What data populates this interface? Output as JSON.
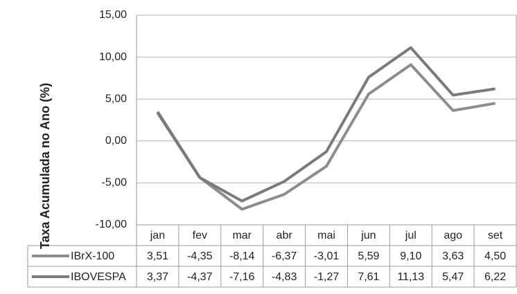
{
  "chart_data": {
    "type": "line",
    "y_label": "Taxa Acumulada no Ano (%)",
    "categories": [
      "jan",
      "fev",
      "mar",
      "abr",
      "mai",
      "jun",
      "jul",
      "ago",
      "set"
    ],
    "series": [
      {
        "name": "IBrX-100",
        "color": "#8c8c8c",
        "values": [
          3.51,
          -4.35,
          -8.14,
          -6.37,
          -3.01,
          5.59,
          9.1,
          3.63,
          4.5
        ],
        "value_labels": [
          "3,51",
          "-4,35",
          "-8,14",
          "-6,37",
          "-3,01",
          "5,59",
          "9,10",
          "3,63",
          "4,50"
        ]
      },
      {
        "name": "IBOVESPA",
        "color": "#7a7a7a",
        "values": [
          3.37,
          -4.37,
          -7.16,
          -4.83,
          -1.27,
          7.61,
          11.13,
          5.47,
          6.22
        ],
        "value_labels": [
          "3,37",
          "-4,37",
          "-7,16",
          "-4,83",
          "-1,27",
          "7,61",
          "11,13",
          "5,47",
          "6,22"
        ]
      }
    ],
    "ylim": [
      -10,
      15
    ],
    "yticks": [
      {
        "value": -10,
        "label": "-10,00"
      },
      {
        "value": -5,
        "label": "-5,00"
      },
      {
        "value": 0,
        "label": "0,00"
      },
      {
        "value": 5,
        "label": "5,00"
      },
      {
        "value": 10,
        "label": "10,00"
      },
      {
        "value": 15,
        "label": "15,00"
      }
    ],
    "grid": true
  }
}
